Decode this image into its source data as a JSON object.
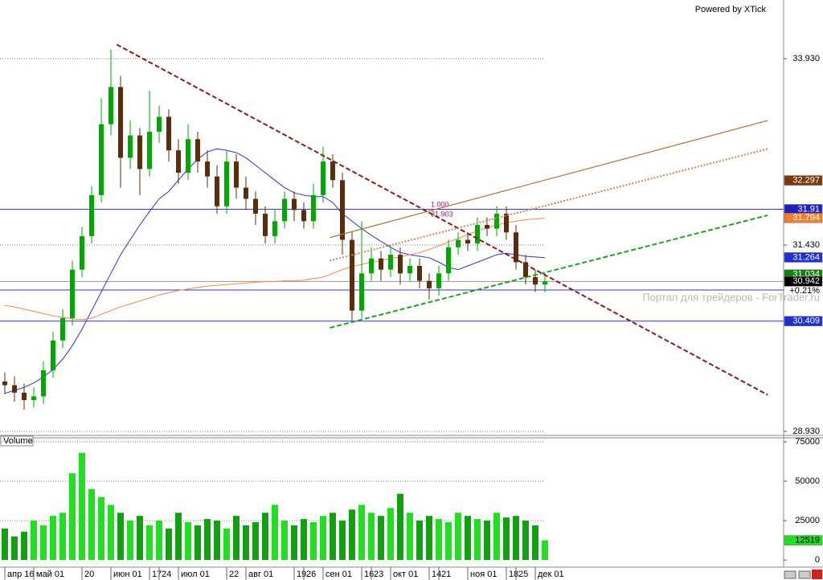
{
  "chart_data": {
    "type": "candlestick",
    "credit": "Powered by XTick",
    "watermark": "Портал для трейдеров - ForTrader.ru",
    "up_color": "#00a800",
    "down_color": "#5a2d0c",
    "categories": [
      "апр 16",
      null,
      null,
      "май 01",
      null,
      null,
      null,
      null,
      "20",
      null,
      null,
      "июн 01",
      null,
      null,
      null,
      "17",
      "24",
      null,
      "июл 01",
      null,
      null,
      null,
      null,
      "22",
      null,
      "авг 01",
      null,
      null,
      null,
      null,
      "19",
      "26",
      null,
      "сен 01",
      null,
      null,
      null,
      "16",
      "23",
      null,
      "окт 01",
      null,
      null,
      null,
      "14",
      "21",
      null,
      null,
      "ноя 01",
      null,
      null,
      null,
      "18",
      "25",
      null,
      "дек 01",
      null
    ],
    "open": [
      29.6,
      29.55,
      29.45,
      29.35,
      29.4,
      29.75,
      30.15,
      30.45,
      31.1,
      31.55,
      32.1,
      33.05,
      33.55,
      32.6,
      32.9,
      32.45,
      32.95,
      33.15,
      32.7,
      32.4,
      32.85,
      32.55,
      32.35,
      31.95,
      32.55,
      32.2,
      32.05,
      31.85,
      31.55,
      31.75,
      32.05,
      31.9,
      31.75,
      32.1,
      32.55,
      32.3,
      31.5,
      30.55,
      31.05,
      31.25,
      31.1,
      31.3,
      31.05,
      31.15,
      30.95,
      30.85,
      31.05,
      31.4,
      31.5,
      31.45,
      31.7,
      31.65,
      31.85,
      31.6,
      31.2,
      31.0,
      30.9
    ],
    "high": [
      29.72,
      29.67,
      29.57,
      29.52,
      29.87,
      30.27,
      30.57,
      31.22,
      31.67,
      32.22,
      33.4,
      34.05,
      33.7,
      33.1,
      33.0,
      33.5,
      33.3,
      33.25,
      32.85,
      33.05,
      32.95,
      32.7,
      32.5,
      32.7,
      32.65,
      32.35,
      32.15,
      31.95,
      31.9,
      32.15,
      32.15,
      32.0,
      32.25,
      32.75,
      32.65,
      32.4,
      31.6,
      31.75,
      31.4,
      31.35,
      31.4,
      31.4,
      31.25,
      31.25,
      31.05,
      31.15,
      31.5,
      31.6,
      31.6,
      31.8,
      31.8,
      31.95,
      31.95,
      31.7,
      31.3,
      31.1,
      31.05
    ],
    "low": [
      29.43,
      29.33,
      29.22,
      29.25,
      29.3,
      29.65,
      30.05,
      30.35,
      31.0,
      31.45,
      32.0,
      32.9,
      32.2,
      32.45,
      32.1,
      32.35,
      32.8,
      32.55,
      32.25,
      32.3,
      32.4,
      32.2,
      31.85,
      31.85,
      32.05,
      31.9,
      31.7,
      31.45,
      31.45,
      31.65,
      31.75,
      31.65,
      31.65,
      32.0,
      32.2,
      31.3,
      30.4,
      30.45,
      30.95,
      30.95,
      31.0,
      30.9,
      30.95,
      30.85,
      30.7,
      30.75,
      30.95,
      31.3,
      31.35,
      31.35,
      31.55,
      31.55,
      31.5,
      31.1,
      30.9,
      30.8,
      30.8
    ],
    "close": [
      29.55,
      29.45,
      29.35,
      29.4,
      29.75,
      30.15,
      30.45,
      31.1,
      31.55,
      32.1,
      33.05,
      33.55,
      32.6,
      32.9,
      32.45,
      32.95,
      33.15,
      32.7,
      32.4,
      32.85,
      32.55,
      32.35,
      31.95,
      32.55,
      32.2,
      32.05,
      31.85,
      31.55,
      31.75,
      32.05,
      31.9,
      31.75,
      32.1,
      32.55,
      32.3,
      31.5,
      30.55,
      31.05,
      31.25,
      31.1,
      31.3,
      31.05,
      31.15,
      30.95,
      30.85,
      31.05,
      31.4,
      31.5,
      31.45,
      31.7,
      31.65,
      31.85,
      31.6,
      31.2,
      31.0,
      30.9,
      30.942
    ],
    "ylim": [
      28.898,
      34.717
    ],
    "yticks": [
      {
        "value": 33.93,
        "label": "33.930"
      },
      {
        "value": 31.43,
        "label": "31.430"
      },
      {
        "value": 28.93,
        "label": "28.930"
      }
    ],
    "moving_averages": [
      {
        "color": "#2a34d8",
        "values": [
          29.44,
          29.48,
          29.52,
          29.58,
          29.66,
          29.76,
          29.9,
          30.08,
          30.3,
          30.55,
          30.8,
          31.05,
          31.3,
          31.5,
          31.7,
          31.88,
          32.05,
          32.15,
          32.3,
          32.45,
          32.58,
          32.68,
          32.72,
          32.7,
          32.67,
          32.6,
          32.5,
          32.4,
          32.3,
          32.2,
          32.13,
          32.1,
          32.08,
          32.08,
          32.0,
          31.85,
          31.75,
          31.65,
          31.56,
          31.48,
          31.4,
          31.33,
          31.3,
          31.28,
          31.26,
          31.2,
          31.13,
          31.1,
          31.15,
          31.2,
          31.25,
          31.3,
          31.32,
          31.3,
          31.28,
          31.27,
          31.26
        ]
      },
      {
        "color": "#f4884a",
        "values": [
          30.62,
          30.6,
          30.57,
          30.54,
          30.51,
          30.48,
          30.46,
          30.44,
          30.43,
          30.45,
          30.5,
          30.55,
          30.6,
          30.64,
          30.68,
          30.72,
          30.76,
          30.79,
          30.82,
          30.84,
          30.86,
          30.88,
          30.89,
          30.9,
          30.91,
          30.92,
          30.93,
          30.94,
          30.94,
          30.95,
          30.95,
          30.96,
          30.98,
          31.0,
          31.05,
          31.1,
          31.14,
          31.17,
          31.2,
          31.22,
          31.25,
          31.27,
          31.3,
          31.33,
          31.37,
          31.42,
          31.47,
          31.52,
          31.57,
          31.62,
          31.66,
          31.7,
          31.73,
          31.75,
          31.77,
          31.78,
          31.79
        ]
      }
    ],
    "trendlines": [
      {
        "color": "#8b1a1a",
        "style": "dashed",
        "points": [
          [
            11.6,
            34.12
          ],
          [
            79.1,
            29.42
          ]
        ]
      },
      {
        "color": "#b0703a",
        "style": "solid",
        "points": [
          [
            33.7,
            31.53
          ],
          [
            79.1,
            33.1
          ]
        ]
      },
      {
        "color": "#c8875a",
        "style": "dotted",
        "points": [
          [
            33.7,
            31.22
          ],
          [
            79.1,
            32.72
          ]
        ]
      },
      {
        "color": "#22a022",
        "style": "dashed",
        "points": [
          [
            33.7,
            30.32
          ],
          [
            79.1,
            31.83
          ]
        ]
      }
    ],
    "hlines": [
      {
        "value": 31.91,
        "color": "#3434c8"
      },
      {
        "value": 30.827,
        "color": "#3434c8"
      },
      {
        "value": 30.409,
        "color": "#3434c8"
      }
    ],
    "fib_labels": [
      {
        "value": 1,
        "label": "1.000"
      },
      31.903
    ],
    "price_tags": [
      {
        "value": 32.297,
        "color": "#7a3a10"
      },
      {
        "value": 31.91,
        "color": "#2020c0"
      },
      {
        "value": 31.794,
        "color": "#f08030"
      },
      {
        "value": 31.264,
        "color": "#2030d0"
      },
      {
        "value": 31.034,
        "color": "#108010"
      },
      {
        "value": 30.409,
        "color": "#2030d0"
      }
    ],
    "change_label": "+0.21%",
    "volume": {
      "title": "Volume",
      "up_color": "#22dd22",
      "down_color": "#12a012",
      "values": [
        20000,
        15000,
        18000,
        25000,
        22000,
        28000,
        30000,
        55000,
        68000,
        45000,
        40000,
        35000,
        30000,
        25000,
        28000,
        22000,
        25000,
        20000,
        30000,
        24000,
        22000,
        26000,
        25000,
        20000,
        28000,
        22000,
        24000,
        30000,
        35000,
        25000,
        22000,
        26000,
        24000,
        28000,
        30000,
        25000,
        32000,
        35000,
        30000,
        28000,
        33000,
        42000,
        30000,
        25000,
        28000,
        26000,
        24000,
        30000,
        28000,
        26000,
        25000,
        30000,
        27000,
        28000,
        25000,
        22000,
        12519
      ],
      "ylim": [
        -4000,
        77500
      ],
      "yticks": [
        0,
        25000,
        50000,
        75000
      ]
    }
  }
}
